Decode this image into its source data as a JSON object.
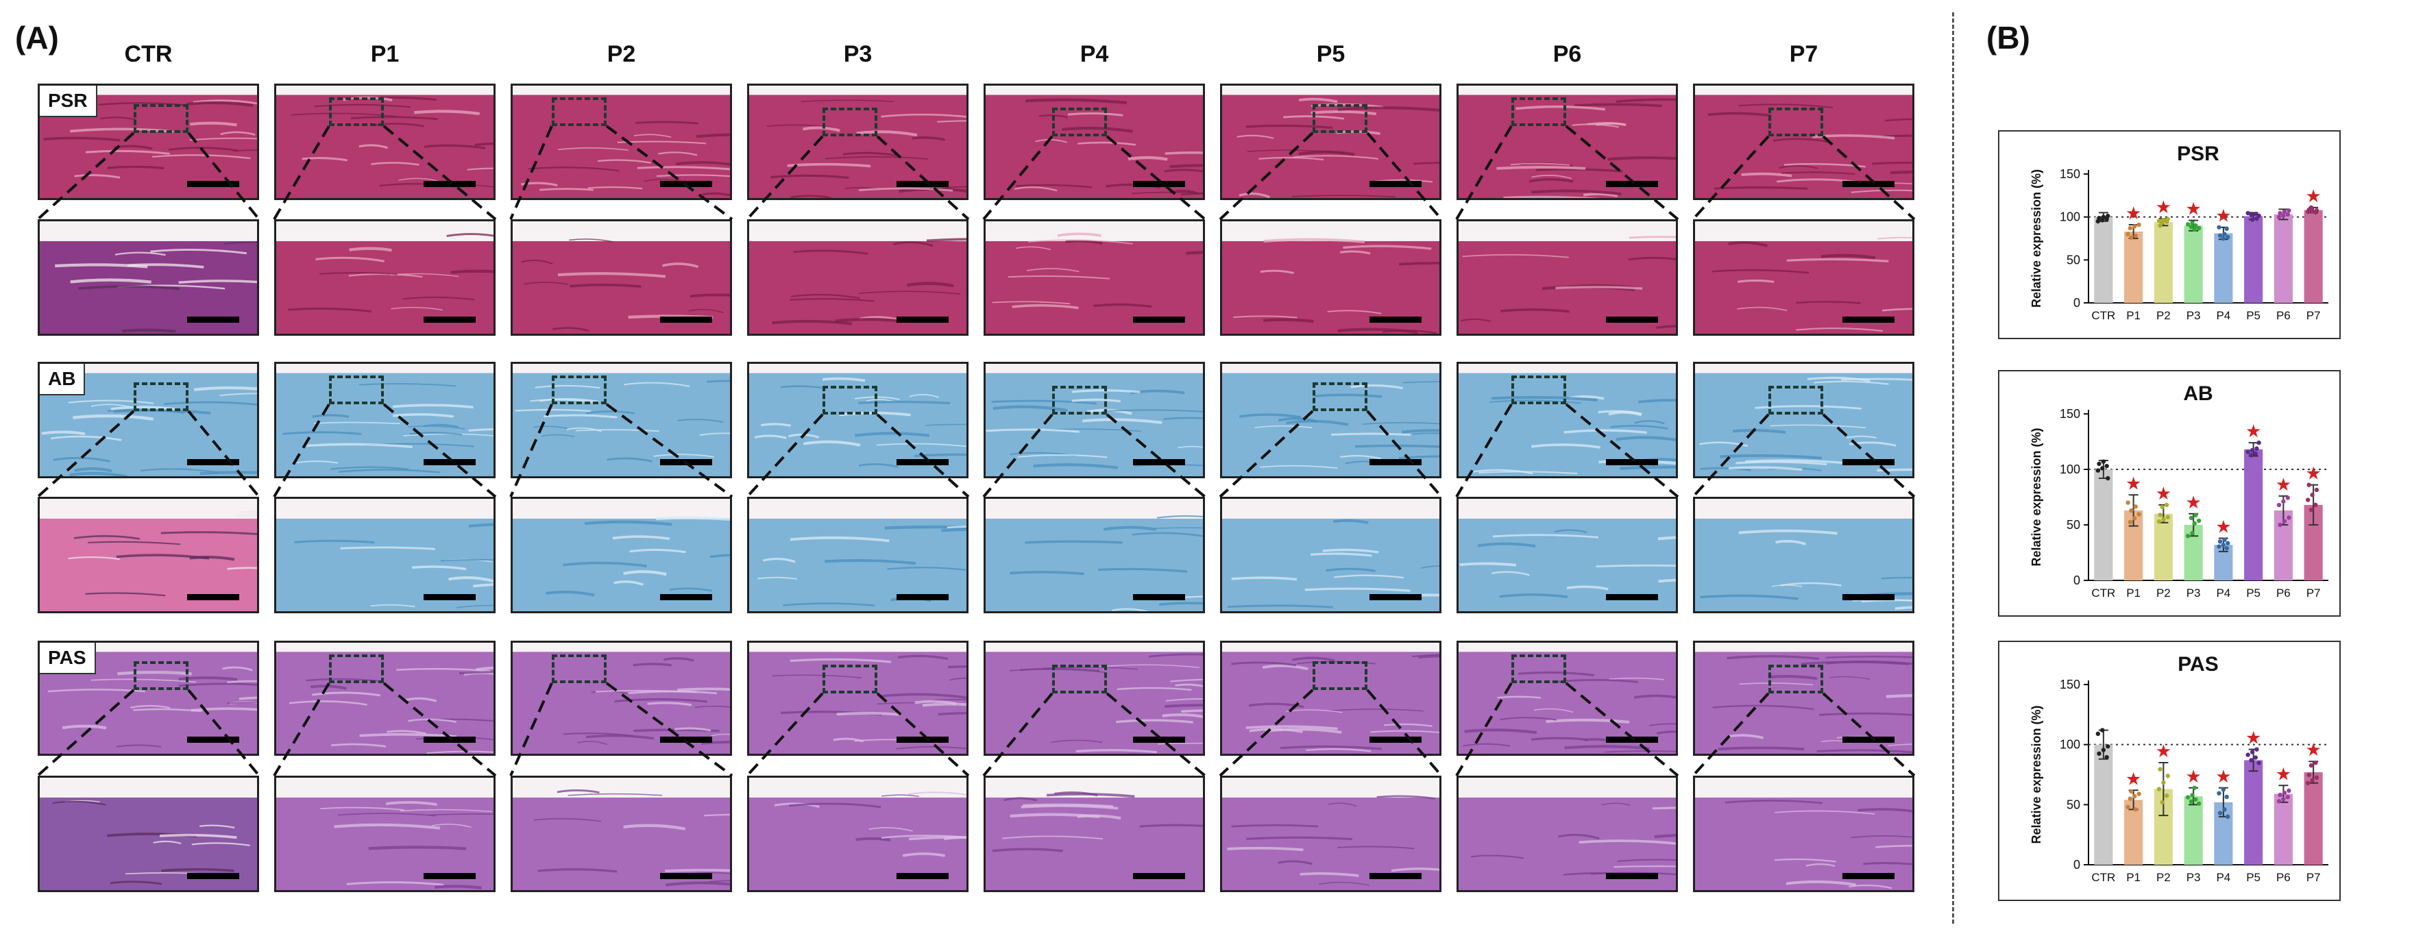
{
  "panel_a_label": "(A)",
  "panel_b_label": "(B)",
  "columns": [
    "CTR",
    "P1",
    "P2",
    "P3",
    "P4",
    "P5",
    "P6",
    "P7"
  ],
  "stains": [
    {
      "label": "PSR",
      "colors": {
        "base": "#b23a6e",
        "light": "#e7a7c0",
        "dark": "#7d1d4a"
      }
    },
    {
      "label": "AB",
      "colors": {
        "base": "#7fb4d6",
        "light": "#d8eaf5",
        "dark": "#4b8fbd"
      }
    },
    {
      "label": "PAS",
      "colors": {
        "base": "#a86bb9",
        "light": "#dbbfe6",
        "dark": "#7b3f92"
      }
    }
  ],
  "ctr_zoom_colors": {
    "PSR": "#8a3c88",
    "AB": "#d874a8",
    "PAS": "#8a5aa6"
  },
  "chart_data": [
    {
      "type": "bar",
      "title": "PSR",
      "ylabel": "Relative expression (%)",
      "categories": [
        "CTR",
        "P1",
        "P2",
        "P3",
        "P4",
        "P5",
        "P6",
        "P7"
      ],
      "values": [
        100,
        83,
        94,
        90,
        81,
        101,
        103,
        108
      ],
      "errors": [
        5,
        8,
        4,
        6,
        7,
        4,
        6,
        3
      ],
      "significant": [
        false,
        true,
        true,
        true,
        true,
        false,
        false,
        true
      ],
      "reference_line": 100,
      "ylim": [
        0,
        150
      ],
      "yticks": [
        0,
        50,
        100,
        150
      ]
    },
    {
      "type": "bar",
      "title": "AB",
      "ylabel": "Relative expression (%)",
      "categories": [
        "CTR",
        "P1",
        "P2",
        "P3",
        "P4",
        "P5",
        "P6",
        "P7"
      ],
      "values": [
        100,
        63,
        60,
        50,
        32,
        118,
        63,
        68
      ],
      "errors": [
        8,
        14,
        8,
        10,
        6,
        6,
        13,
        18
      ],
      "significant": [
        false,
        true,
        true,
        true,
        true,
        true,
        true,
        true
      ],
      "reference_line": 100,
      "ylim": [
        0,
        150
      ],
      "yticks": [
        0,
        50,
        100,
        150
      ]
    },
    {
      "type": "bar",
      "title": "PAS",
      "ylabel": "Relative expression (%)",
      "categories": [
        "CTR",
        "P1",
        "P2",
        "P3",
        "P4",
        "P5",
        "P6",
        "P7"
      ],
      "values": [
        100,
        54,
        63,
        57,
        52,
        87,
        59,
        77
      ],
      "errors": [
        12,
        8,
        22,
        7,
        12,
        9,
        7,
        9
      ],
      "significant": [
        false,
        true,
        true,
        true,
        true,
        true,
        true,
        true
      ],
      "reference_line": 100,
      "ylim": [
        0,
        150
      ],
      "yticks": [
        0,
        50,
        100,
        150
      ]
    }
  ],
  "bar_colors": [
    "#c9c9c9",
    "#e8b48c",
    "#d9dc8d",
    "#9ee29e",
    "#8fb3dc",
    "#9b62c8",
    "#cf8fcf",
    "#c86a98"
  ],
  "dot_colors": [
    "#222222",
    "#c8823c",
    "#a9ad2c",
    "#33a633",
    "#356aa3",
    "#5a2b8a",
    "#9b3f9b",
    "#9a2f66"
  ],
  "star_color": "#d42020"
}
